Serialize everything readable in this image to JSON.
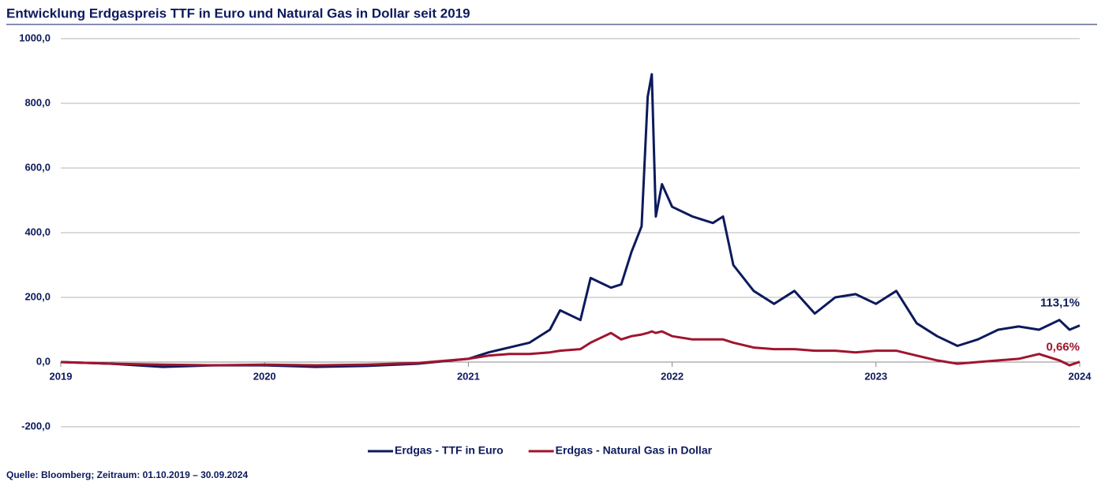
{
  "chart_data": {
    "type": "line",
    "title": "Entwicklung Erdgaspreis TTF in Euro und Natural Gas in Dollar seit 2019",
    "source": "Quelle: Bloomberg; Zeitraum: 01.10.2019 – 30.09.2024",
    "x": [
      2019.0,
      2019.25,
      2019.5,
      2019.75,
      2020.0,
      2020.25,
      2020.5,
      2020.75,
      2021.0,
      2021.1,
      2021.2,
      2021.3,
      2021.4,
      2021.45,
      2021.55,
      2021.6,
      2021.7,
      2021.75,
      2021.8,
      2021.85,
      2021.88,
      2021.9,
      2021.92,
      2021.95,
      2022.0,
      2022.1,
      2022.2,
      2022.25,
      2022.3,
      2022.4,
      2022.5,
      2022.6,
      2022.7,
      2022.8,
      2022.9,
      2023.0,
      2023.1,
      2023.2,
      2023.3,
      2023.4,
      2023.5,
      2023.6,
      2023.7,
      2023.8,
      2023.9,
      2023.95,
      2024.0
    ],
    "series": [
      {
        "name": "Erdgas - TTF in Euro",
        "color": "#0d1a5c",
        "values": [
          0,
          -5,
          -15,
          -10,
          -10,
          -15,
          -12,
          -5,
          10,
          30,
          45,
          60,
          100,
          160,
          130,
          260,
          230,
          240,
          340,
          420,
          820,
          890,
          450,
          550,
          480,
          450,
          430,
          450,
          300,
          220,
          180,
          220,
          150,
          200,
          210,
          180,
          220,
          120,
          80,
          50,
          70,
          100,
          110,
          100,
          130,
          100,
          113.1
        ],
        "value_labels": [
          null,
          null,
          null,
          null,
          null,
          null,
          null,
          null,
          null,
          null,
          null,
          null,
          null,
          null,
          null,
          null,
          null,
          null,
          null,
          null,
          null,
          null,
          null,
          null,
          null,
          null,
          null,
          null,
          null,
          null,
          null,
          null,
          null,
          null,
          null,
          null,
          null,
          null,
          null,
          null,
          null,
          null,
          null,
          null,
          null,
          null,
          "113,1%"
        ]
      },
      {
        "name": "Erdgas - Natural Gas in Dollar",
        "color": "#a0142e",
        "values": [
          0,
          -5,
          -8,
          -10,
          -8,
          -10,
          -8,
          -3,
          10,
          20,
          25,
          25,
          30,
          35,
          40,
          60,
          90,
          70,
          80,
          85,
          90,
          95,
          90,
          95,
          80,
          70,
          70,
          70,
          60,
          45,
          40,
          40,
          35,
          35,
          30,
          35,
          35,
          20,
          5,
          -5,
          0,
          5,
          10,
          25,
          5,
          -10,
          0.66
        ],
        "value_labels": [
          null,
          null,
          null,
          null,
          null,
          null,
          null,
          null,
          null,
          null,
          null,
          null,
          null,
          null,
          null,
          null,
          null,
          null,
          null,
          null,
          null,
          null,
          null,
          null,
          null,
          null,
          null,
          null,
          null,
          null,
          null,
          null,
          null,
          null,
          null,
          null,
          null,
          null,
          null,
          null,
          null,
          null,
          null,
          null,
          null,
          null,
          "0,66%"
        ]
      }
    ],
    "xlim": [
      2019,
      2024
    ],
    "xticks": [
      2019,
      2020,
      2021,
      2022,
      2023,
      2024
    ],
    "ylim": [
      -200,
      1000
    ],
    "yticks": [
      {
        "value": -200,
        "label": "-200,0"
      },
      {
        "value": 0,
        "label": "0,0"
      },
      {
        "value": 200,
        "label": "200,0"
      },
      {
        "value": 400,
        "label": "400,0"
      },
      {
        "value": 600,
        "label": "600,0"
      },
      {
        "value": 800,
        "label": "800,0"
      },
      {
        "value": 1000,
        "label": "1000,0"
      }
    ],
    "grid": true,
    "legend": "bottom"
  }
}
